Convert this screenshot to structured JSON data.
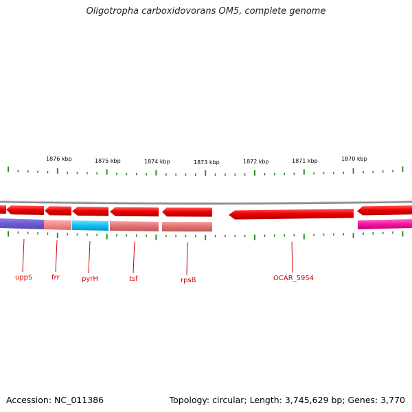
{
  "title": "Oligotropha carboxidovorans OM5, complete genome",
  "footer": {
    "accession": "Accession: NC_011386",
    "summary": "Topology: circular; Length: 3,745,629 bp; Genes: 3,770"
  },
  "colors": {
    "gene_arrow": "#ee0000",
    "backbone": "#888888",
    "tick": "#2e8b2e",
    "label": "#cc0000",
    "cog_purple": "#6a5acd",
    "cog_salmon": "#f08080",
    "cog_cyan": "#00bfff",
    "cog_rose": "#e06666",
    "cog_magenta": "#ff1493"
  },
  "kbp_labels": [
    "1876 kbp",
    "1875 kbp",
    "1874 kbp",
    "1873 kbp",
    "1872 kbp",
    "1871 kbp",
    "1870 kbp"
  ],
  "gene_labels": [
    "uppS",
    "frr",
    "pyrH",
    "tsf",
    "rpsB",
    "OCAR_5954"
  ]
}
